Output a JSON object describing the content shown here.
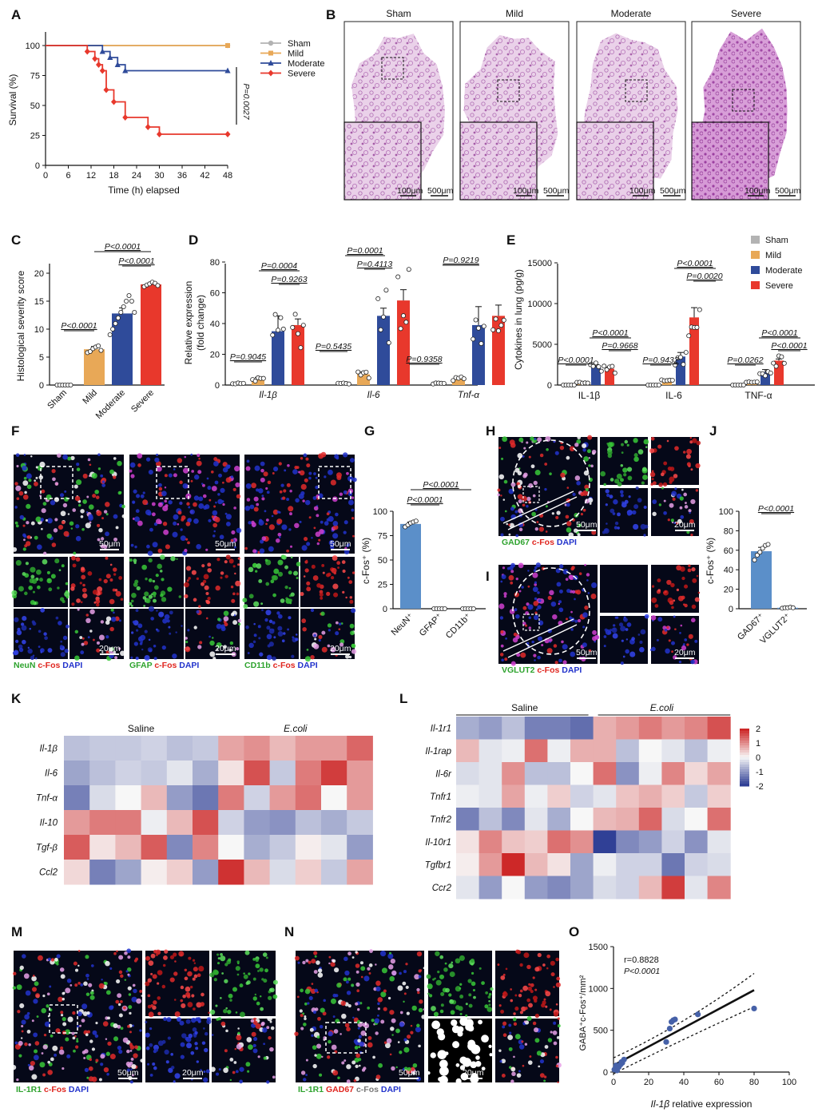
{
  "panels": {
    "A": "A",
    "B": "B",
    "C": "C",
    "D": "D",
    "E": "E",
    "F": "F",
    "G": "G",
    "H": "H",
    "I": "I",
    "J": "J",
    "K": "K",
    "L": "L",
    "M": "M",
    "N": "N",
    "O": "O"
  },
  "colors": {
    "sham": "#b3b3b3",
    "mild": "#e8a857",
    "moderate": "#2f4b9a",
    "severe": "#e8382c",
    "g_bar": "#5b8fc9",
    "he_pink": "#d9a7d6",
    "fluor_bg": "#050818"
  },
  "panel_A": {
    "ylabel": "Survival (%)",
    "xlabel": "Time (h) elapsed",
    "p_value": "P=0.0027",
    "yticks": [
      "0",
      "25",
      "50",
      "75",
      "100"
    ],
    "xticks": [
      "0",
      "6",
      "12",
      "18",
      "24",
      "30",
      "36",
      "42",
      "48"
    ]
  },
  "panel_B": {
    "titles": [
      "Sham",
      "Mild",
      "Moderate",
      "Severe"
    ],
    "scale_small": "100μm",
    "scale_large": "500μm"
  },
  "panel_C": {
    "ylabel": "Histological severity score",
    "yticks": [
      "0",
      "5",
      "10",
      "15",
      "20"
    ],
    "categories": [
      "Sham",
      "Mild",
      "Moderate",
      "Severe"
    ],
    "pvals": [
      "P<0.0001",
      "P<0.0001",
      "P<0.0001"
    ]
  },
  "panel_D": {
    "ylabel1": "Relative expression",
    "ylabel2": "(fold change)",
    "yticks": [
      "0",
      "20",
      "40",
      "60",
      "80"
    ],
    "genes": [
      "Il-1β",
      "Il-6",
      "Tnf-α"
    ],
    "pvals": {
      "il1b": [
        "P=0.9045",
        "P=0.0004",
        "P=0.9263"
      ],
      "il6": [
        "P=0.5435",
        "P=0.0001",
        "P=0.4113"
      ],
      "tnf": [
        "P=0.9358",
        "P=0.9219"
      ]
    }
  },
  "panel_E": {
    "ylabel": "Cytokines in lung (pg/g)",
    "yticks": [
      "0",
      "5000",
      "10000",
      "15000"
    ],
    "cytokines": [
      "IL-1β",
      "IL-6",
      "TNF-α"
    ],
    "legend": [
      "Sham",
      "Mild",
      "Moderate",
      "Severe"
    ],
    "pvals": {
      "il1b": [
        "P<0.0001",
        "P<0.0001",
        "P=0.9668"
      ],
      "il6": [
        "P=0.9432",
        "P<0.0001",
        "P=0.0020"
      ],
      "tnf": [
        "P=0.0262",
        "P<0.0001",
        "P<0.0001"
      ]
    }
  },
  "panel_F": {
    "scale50": "50μm",
    "scale20": "20μm",
    "labels": [
      [
        "NeuN",
        "c-Fos",
        "DAPI"
      ],
      [
        "GFAP",
        "c-Fos",
        "DAPI"
      ],
      [
        "CD11b",
        "c-Fos",
        "DAPI"
      ]
    ]
  },
  "panel_G": {
    "ylabel": "c-Fos⁺ (%)",
    "yticks": [
      "0",
      "25",
      "50",
      "75",
      "100"
    ],
    "categories": [
      "NeuN⁺",
      "GFAP⁺",
      "CD11b⁺"
    ],
    "pvals": [
      "P<0.0001",
      "P<0.0001"
    ]
  },
  "panel_H": {
    "labels": [
      "GAD67",
      "c-Fos",
      "DAPI"
    ],
    "scale50": "50μm",
    "scale20": "20μm"
  },
  "panel_I": {
    "labels": [
      "VGLUT2",
      "c-Fos",
      "DAPI"
    ],
    "scale50": "50μm",
    "scale20": "20μm"
  },
  "panel_J": {
    "ylabel": "c-Fos⁺ (%)",
    "yticks": [
      "0",
      "20",
      "40",
      "60",
      "80",
      "100"
    ],
    "categories": [
      "GAD67⁺",
      "VGLUT2⁺"
    ],
    "pval": "P<0.0001"
  },
  "panel_K": {
    "groups": [
      "Saline",
      "E.coli"
    ],
    "rows": [
      "Il-1β",
      "Il-6",
      "Tnf-α",
      "Il-10",
      "Tgf-β",
      "Ccl2"
    ],
    "values": [
      [
        -0.6,
        -0.5,
        -0.5,
        -0.4,
        -0.6,
        -0.5,
        0.8,
        1.0,
        0.6,
        0.9,
        0.9,
        1.4
      ],
      [
        -0.9,
        -0.6,
        -0.4,
        -0.5,
        -0.2,
        -0.8,
        0.2,
        1.6,
        -0.5,
        1.2,
        1.8,
        0.9
      ],
      [
        -1.3,
        -0.3,
        0.0,
        0.6,
        -1.0,
        -1.4,
        1.2,
        -0.4,
        0.9,
        1.3,
        0.0,
        0.9
      ],
      [
        0.9,
        1.2,
        1.2,
        -0.1,
        0.6,
        1.6,
        -0.4,
        -1.0,
        -1.1,
        -0.6,
        -0.8,
        -0.5
      ],
      [
        1.5,
        0.2,
        0.6,
        1.5,
        -1.2,
        1.1,
        0.0,
        -0.8,
        -0.5,
        0.1,
        -0.2,
        -1.0
      ],
      [
        0.3,
        -1.3,
        -0.9,
        0.1,
        0.4,
        -1.0,
        1.9,
        0.6,
        -0.3,
        0.4,
        -0.5,
        0.8
      ]
    ]
  },
  "panel_L": {
    "groups": [
      "Saline",
      "E.coli"
    ],
    "rows": [
      "Il-1r1",
      "Il-1rap",
      "Il-6r",
      "Tnfr1",
      "Tnfr2",
      "Il-10r1",
      "Tgfbr1",
      "Ccr2"
    ],
    "values": [
      [
        -0.8,
        -1.0,
        -0.6,
        -1.3,
        -1.3,
        -1.5,
        0.7,
        0.9,
        1.2,
        0.9,
        1.1,
        1.6
      ],
      [
        0.6,
        -0.2,
        -0.1,
        1.3,
        -0.1,
        0.7,
        0.7,
        -0.6,
        0.0,
        -0.2,
        -0.6,
        -0.1
      ],
      [
        -0.3,
        -0.2,
        1.0,
        -0.6,
        -0.6,
        0.0,
        1.3,
        -1.1,
        -0.1,
        1.1,
        0.3,
        0.8
      ],
      [
        -0.1,
        -0.2,
        0.8,
        -0.1,
        0.4,
        -0.4,
        -0.2,
        0.5,
        0.7,
        0.4,
        -0.5,
        0.4
      ],
      [
        -1.3,
        -0.6,
        -1.2,
        -0.2,
        -0.8,
        0.0,
        0.6,
        0.7,
        1.4,
        -0.3,
        0.0,
        1.3
      ],
      [
        0.2,
        1.1,
        0.5,
        0.4,
        1.3,
        1.0,
        -2.0,
        -1.2,
        -1.0,
        -0.4,
        -1.1,
        -0.2
      ],
      [
        0.1,
        0.9,
        2.1,
        0.6,
        0.2,
        -0.9,
        -0.1,
        -0.4,
        -0.4,
        -1.4,
        -0.4,
        -0.3
      ],
      [
        -0.2,
        -1.0,
        0.0,
        -1.0,
        -1.2,
        -0.9,
        -0.3,
        -0.4,
        0.6,
        1.8,
        -0.2,
        1.1
      ]
    ],
    "colorbar_ticks": [
      "2",
      "1",
      "0",
      "-1",
      "-2"
    ]
  },
  "panel_M": {
    "labels": [
      "IL-1R1",
      "c-Fos",
      "DAPI"
    ],
    "scale50": "50μm",
    "scale20": "20μm"
  },
  "panel_N": {
    "labels": [
      "IL-1R1",
      "GAD67",
      "c-Fos",
      "DAPI"
    ],
    "scale50": "50μm",
    "scale20": "20μm"
  },
  "panel_O": {
    "r": "r=0.8828",
    "p": "P<0.0001",
    "ylabel": "GABA⁺c-Fos⁺/mm²",
    "xlabel_gene": "Il-1β",
    "xlabel_rest": " relative expression",
    "yticks": [
      "0",
      "500",
      "1000",
      "1500"
    ],
    "xticks": [
      "0",
      "20",
      "40",
      "60",
      "80",
      "100"
    ]
  },
  "chart_data": [
    {
      "type": "line",
      "title": "",
      "xlabel": "Time (h) elapsed",
      "ylabel": "Survival (%)",
      "xlim": [
        0,
        48
      ],
      "ylim": [
        0,
        100
      ],
      "series": [
        {
          "name": "Sham",
          "color": "#b3b3b3",
          "x": [
            0,
            48
          ],
          "y": [
            100,
            100
          ]
        },
        {
          "name": "Mild",
          "color": "#e8a857",
          "x": [
            0,
            48
          ],
          "y": [
            100,
            100
          ]
        },
        {
          "name": "Moderate",
          "color": "#2f4b9a",
          "x": [
            0,
            15,
            17,
            19,
            21,
            48
          ],
          "y": [
            100,
            95,
            90,
            84,
            79,
            79
          ]
        },
        {
          "name": "Severe",
          "color": "#e8382c",
          "x": [
            0,
            11,
            13,
            14,
            15,
            16,
            18,
            21,
            27,
            30,
            48
          ],
          "y": [
            100,
            95,
            89,
            84,
            79,
            63,
            53,
            40,
            32,
            26,
            26
          ]
        }
      ]
    },
    {
      "type": "bar",
      "title": "",
      "ylabel": "Histological severity score",
      "ylim": [
        0,
        20
      ],
      "categories": [
        "Sham",
        "Mild",
        "Moderate",
        "Severe"
      ],
      "values": [
        0,
        6.4,
        12.8,
        18.0
      ]
    },
    {
      "type": "bar",
      "ylabel": "Relative expression (fold change)",
      "ylim": [
        0,
        80
      ],
      "categories": [
        "Il-1β",
        "Il-6",
        "Tnf-α"
      ],
      "series": [
        {
          "name": "Sham",
          "values": [
            1,
            1,
            1
          ]
        },
        {
          "name": "Mild",
          "values": [
            4,
            7,
            4
          ]
        },
        {
          "name": "Moderate",
          "values": [
            35,
            45,
            39
          ]
        },
        {
          "name": "Severe",
          "values": [
            39,
            55,
            45
          ]
        }
      ]
    },
    {
      "type": "bar",
      "ylabel": "Cytokines in lung (pg/g)",
      "ylim": [
        0,
        15000
      ],
      "categories": [
        "IL-1β",
        "IL-6",
        "TNF-α"
      ],
      "series": [
        {
          "name": "Sham",
          "values": [
            0,
            0,
            0
          ]
        },
        {
          "name": "Mild",
          "values": [
            300,
            500,
            400
          ]
        },
        {
          "name": "Moderate",
          "values": [
            2200,
            3500,
            1600
          ]
        },
        {
          "name": "Severe",
          "values": [
            2000,
            8300,
            3000
          ]
        }
      ]
    },
    {
      "type": "bar",
      "ylabel": "c-Fos⁺ (%)",
      "ylim": [
        0,
        100
      ],
      "categories": [
        "NeuN⁺",
        "GFAP⁺",
        "CD11b⁺"
      ],
      "values": [
        87,
        0,
        0
      ]
    },
    {
      "type": "bar",
      "ylabel": "c-Fos⁺ (%)",
      "ylim": [
        0,
        100
      ],
      "categories": [
        "GAD67⁺",
        "VGLUT2⁺"
      ],
      "values": [
        59,
        1
      ]
    },
    {
      "type": "scatter",
      "xlabel": "Il-1β relative expression",
      "ylabel": "GABA⁺c-Fos⁺/mm²",
      "xlim": [
        0,
        100
      ],
      "ylim": [
        0,
        1500
      ],
      "series": [
        {
          "x": [
            0.5,
            1,
            1.5,
            2,
            3,
            4,
            4.5,
            5,
            6,
            30,
            32,
            33,
            34,
            35,
            48,
            80
          ],
          "y": [
            30,
            40,
            80,
            20,
            60,
            90,
            120,
            110,
            150,
            360,
            520,
            600,
            620,
            630,
            690,
            760
          ]
        }
      ],
      "fit": {
        "x": [
          0,
          80
        ],
        "y": [
          80,
          980
        ]
      }
    }
  ]
}
